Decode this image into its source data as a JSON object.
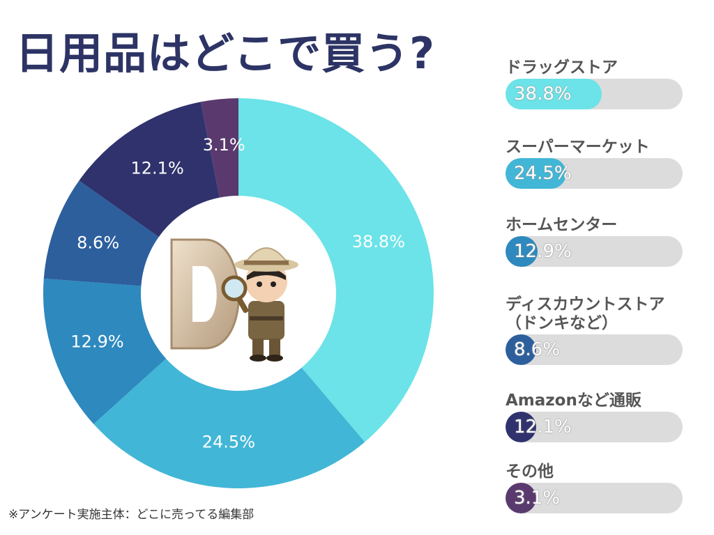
{
  "title": "日用品はどこで買う?",
  "footnote": "※アンケート実施主体：どこに売ってる編集部",
  "mascot": {
    "letter": "D"
  },
  "chart_data": {
    "type": "pie",
    "categories": [
      "ドラッグストア",
      "スーパーマーケット",
      "ホームセンター",
      "ディスカウントストア\n（ドンキなど）",
      "Amazonなど通販",
      "その他"
    ],
    "values": [
      38.8,
      24.5,
      12.9,
      8.6,
      12.1,
      3.1
    ],
    "labels": [
      "38.8%",
      "24.5%",
      "12.9%",
      "8.6%",
      "12.1%",
      "3.1%"
    ],
    "colors": [
      "#6be3e8",
      "#42b6d6",
      "#2d89be",
      "#2d5f9d",
      "#2f326c",
      "#5a3a6e"
    ],
    "donut": true,
    "legend_placement": "right"
  }
}
